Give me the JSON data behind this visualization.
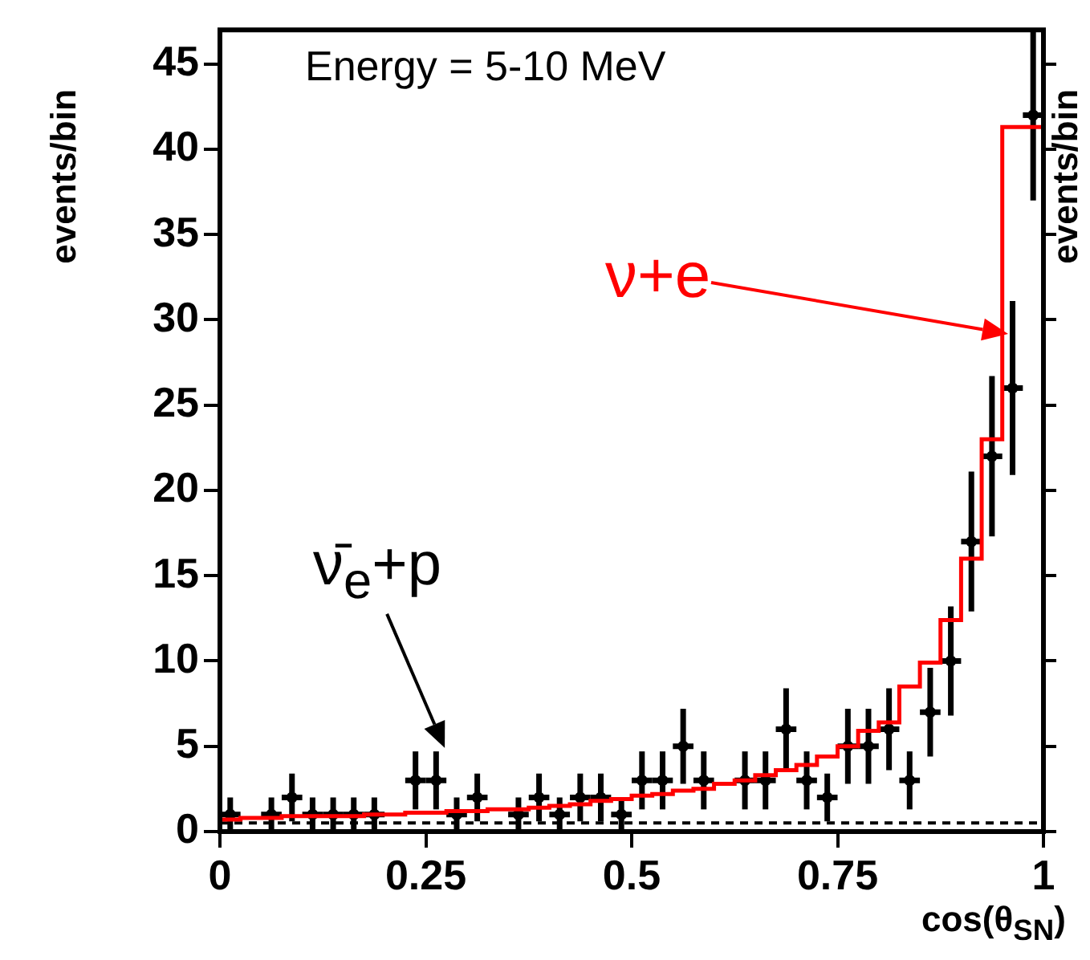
{
  "chart_data": {
    "type": "scatter",
    "xlabel": "cos(θ$_{SN}$)",
    "ylabel": "events/bin",
    "y2label": "events/bin",
    "xlim": [
      0,
      1
    ],
    "xticks": [
      0,
      0.25,
      0.5,
      0.75,
      1
    ],
    "ylim": [
      0,
      47
    ],
    "yticks": [
      0,
      5,
      10,
      15,
      20,
      25,
      30,
      35,
      40,
      45
    ],
    "grid": false,
    "legend": false,
    "annotations": [
      "Energy = 5-10 MeV",
      "ν+e",
      {
        "text": "ν̄$_{e}$+p",
        "x": 0.273,
        "y": 4.9
      }
    ],
    "series": [
      {
        "type": "scatter",
        "color": "#000000",
        "marker": "circle",
        "x": [
          0.0125,
          0.0625,
          0.0875,
          0.1125,
          0.1375,
          0.1625,
          0.1875,
          0.2375,
          0.2625,
          0.2875,
          0.3125,
          0.3625,
          0.3875,
          0.4125,
          0.4375,
          0.4625,
          0.4875,
          0.5125,
          0.5375,
          0.5625,
          0.5875,
          0.6375,
          0.6625,
          0.6875,
          0.7125,
          0.7375,
          0.7625,
          0.7875,
          0.8125,
          0.8375,
          0.8625,
          0.8875,
          0.9125,
          0.9375,
          0.9625,
          0.9875
        ],
        "values": [
          1,
          1,
          2,
          1,
          1,
          1,
          1,
          3,
          3,
          1,
          2,
          1,
          2,
          1,
          2,
          2,
          1,
          3,
          3,
          5,
          3,
          3,
          3,
          6,
          3,
          2,
          5,
          5,
          6,
          3,
          7,
          10,
          17,
          22,
          26,
          42
        ],
        "errors": [
          1,
          1,
          1.4,
          1,
          1,
          1,
          1,
          1.7,
          1.7,
          1,
          1.4,
          1,
          1.4,
          1,
          1.4,
          1.4,
          1,
          1.7,
          1.7,
          2.2,
          1.7,
          1.7,
          1.7,
          2.4,
          1.7,
          1.4,
          2.2,
          2.2,
          2.4,
          1.7,
          2.6,
          3.2,
          4.1,
          4.7,
          5.1,
          5
        ],
        "xerrors": [
          0.0125,
          0.0125,
          0.0125,
          0.0125,
          0.0125,
          0.0125,
          0.0125,
          0.0125,
          0.0125,
          0.0125,
          0.0125,
          0.0125,
          0.0125,
          0.0125,
          0.0125,
          0.0125,
          0.0125,
          0.0125,
          0.0125,
          0.0125,
          0.0125,
          0.0125,
          0.0125,
          0.0125,
          0.0125,
          0.0125,
          0.0125,
          0.0125,
          0.0125,
          0.0125,
          0.0125,
          0.0125,
          0.0125,
          0.0125,
          0.0125,
          0.0125
        ]
      },
      {
        "type": "step",
        "color": "#ff0000",
        "x": [
          0,
          0.025,
          0.05,
          0.075,
          0.1,
          0.125,
          0.15,
          0.175,
          0.2,
          0.225,
          0.25,
          0.275,
          0.3,
          0.325,
          0.35,
          0.375,
          0.4,
          0.425,
          0.45,
          0.475,
          0.5,
          0.525,
          0.55,
          0.575,
          0.6,
          0.625,
          0.65,
          0.675,
          0.7,
          0.725,
          0.75,
          0.775,
          0.8,
          0.825,
          0.85,
          0.875,
          0.9,
          0.925,
          0.95,
          0.975,
          1
        ],
        "values": [
          0.7,
          0.7,
          0.8,
          0.8,
          0.9,
          0.9,
          0.9,
          0.9,
          1.0,
          1.0,
          1.1,
          1.1,
          1.2,
          1.2,
          1.3,
          1.3,
          1.4,
          1.5,
          1.6,
          1.8,
          1.9,
          2.1,
          2.2,
          2.4,
          2.5,
          2.8,
          3.0,
          3.3,
          3.6,
          3.9,
          4.4,
          5.0,
          5.9,
          6.4,
          8.5,
          9.9,
          12.4,
          16,
          23,
          41.3,
          41.3
        ]
      },
      {
        "type": "line",
        "color": "#000000",
        "line_style": "dashed",
        "marker": "none",
        "x": [
          0,
          1
        ],
        "values": [
          0.5,
          0.5
        ]
      }
    ]
  }
}
